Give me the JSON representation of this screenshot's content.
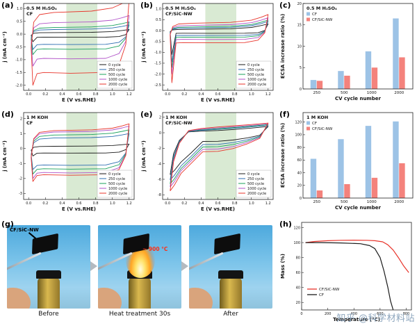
{
  "letters": {
    "a": "(a)",
    "b": "(b)",
    "c": "(c)",
    "d": "(d)",
    "e": "(e)",
    "f": "(f)",
    "g": "(g)",
    "h": "(h)"
  },
  "photos": {
    "captions": [
      "Before",
      "Heat treatment 30s",
      "After"
    ],
    "sample_label": "CF/SiC-NW",
    "flame_temp": "~ 900 °C"
  },
  "watermark": "知乎 @科学材料站",
  "chart_data": [
    {
      "panel": "a",
      "type": "cv",
      "title": "0.5 M H₂SO₄",
      "subtitle": "CF",
      "xlabel": "E (V vs.RHE)",
      "ylabel": "j (mA cm⁻²)",
      "xlim": [
        -0.06,
        1.26
      ],
      "ylim": [
        -2.2,
        1.2
      ],
      "xticks": [
        0.0,
        0.2,
        0.4,
        0.6,
        0.8,
        1.0,
        1.2
      ],
      "xtickfmt": "1f",
      "yticks": [
        1.0,
        0.5,
        0.0,
        -0.5,
        -1.0,
        -1.5,
        -2.0
      ],
      "ytickfmt": "1f",
      "band": [
        0.45,
        0.82
      ],
      "band_color": "#d9ead3",
      "series": [
        {
          "label": "0 cycle",
          "color": "#1a1a1a",
          "top": 0.06,
          "bottom": -0.12,
          "rise": 0.12,
          "dip": -0.3
        },
        {
          "label": "250 cycle",
          "color": "#2b6cb0",
          "top": 0.18,
          "bottom": -0.4,
          "rise": 0.18,
          "dip": -0.6
        },
        {
          "label": "500 cycle",
          "color": "#18a05a",
          "top": 0.26,
          "bottom": -0.58,
          "rise": 0.22,
          "dip": -0.8
        },
        {
          "label": "1000 cycle",
          "color": "#b052c8",
          "top": 0.45,
          "bottom": -0.95,
          "rise": 0.28,
          "dip": -1.25
        },
        {
          "label": "2000 cycle",
          "color": "#e8332a",
          "top": 0.85,
          "bottom": -1.5,
          "rise": 0.5,
          "dip": -2.0
        }
      ]
    },
    {
      "panel": "b",
      "type": "cv",
      "title": "0.5 M H₂SO₄",
      "subtitle": "CF/SiC-NW",
      "xlabel": "E (V vs.RHE)",
      "ylabel": "j (mA cm⁻²)",
      "xlim": [
        -0.06,
        1.26
      ],
      "ylim": [
        -2.75,
        1.25
      ],
      "xticks": [
        0.0,
        0.2,
        0.4,
        0.6,
        0.8,
        1.0,
        1.2
      ],
      "xtickfmt": "1f",
      "yticks": [
        1.0,
        0.5,
        0.0,
        -0.5,
        -1.0,
        -1.5,
        -2.0,
        -2.5
      ],
      "ytickfmt": "1f",
      "band": [
        0.45,
        0.82
      ],
      "band_color": "#d9ead3",
      "series": [
        {
          "label": "0 cycle",
          "color": "#1a1a1a",
          "top": 0.06,
          "bottom": -0.12,
          "rise": 0.25,
          "dip": -1.1
        },
        {
          "label": "250 cycle",
          "color": "#2b6cb0",
          "top": 0.12,
          "bottom": -0.22,
          "rise": 0.3,
          "dip": -1.45
        },
        {
          "label": "500 cycle",
          "color": "#18a05a",
          "top": 0.17,
          "bottom": -0.3,
          "rise": 0.32,
          "dip": -1.7
        },
        {
          "label": "1000 cycle",
          "color": "#b052c8",
          "top": 0.24,
          "bottom": -0.4,
          "rise": 0.35,
          "dip": -2.0
        },
        {
          "label": "2000 cycle",
          "color": "#e8332a",
          "top": 0.34,
          "bottom": -0.55,
          "rise": 0.4,
          "dip": -2.4
        }
      ]
    },
    {
      "panel": "c",
      "type": "bar",
      "title": "0.5 M H₂SO₄",
      "xlabel": "CV cycle number",
      "ylabel": "ECSA increase ratio (%)",
      "xlim": [
        0,
        1
      ],
      "xticks": [],
      "ylim": [
        0,
        20
      ],
      "yticks": [
        0,
        5,
        10,
        15,
        20
      ],
      "ytickfmt": "int",
      "categories": [
        "250",
        "500",
        "1000",
        "2000"
      ],
      "series": [
        {
          "label": "CF",
          "color": "#9DC3E6",
          "values": [
            2.1,
            4.2,
            8.8,
            16.5
          ]
        },
        {
          "label": "CF/SiC-NW",
          "color": "#F4827C",
          "values": [
            1.9,
            3.1,
            5.0,
            7.4
          ]
        }
      ]
    },
    {
      "panel": "d",
      "type": "cv",
      "title": "1 M KOH",
      "subtitle": "CF",
      "xlabel": "E (V vs.RHE)",
      "ylabel": "j (mA cm⁻²)",
      "xlim": [
        -0.06,
        1.26
      ],
      "ylim": [
        -3.4,
        2.4
      ],
      "xticks": [
        0.0,
        0.2,
        0.4,
        0.6,
        0.8,
        1.0,
        1.2
      ],
      "xtickfmt": "1f",
      "yticks": [
        2,
        1,
        0,
        -1,
        -2,
        -3
      ],
      "ytickfmt": "int",
      "band": [
        0.45,
        0.82
      ],
      "band_color": "#d9ead3",
      "series": [
        {
          "label": "0 cycle",
          "color": "#1a1a1a",
          "top": 0.15,
          "bottom": -0.3,
          "rise": 0.15,
          "dip": -0.5
        },
        {
          "label": "250 cycle",
          "color": "#2b6cb0",
          "top": 0.7,
          "bottom": -1.1,
          "rise": 0.3,
          "dip": -1.4
        },
        {
          "label": "500 cycle",
          "color": "#18a05a",
          "top": 0.9,
          "bottom": -1.35,
          "rise": 0.35,
          "dip": -1.7
        },
        {
          "label": "1000 cycle",
          "color": "#b052c8",
          "top": 1.1,
          "bottom": -1.6,
          "rise": 0.4,
          "dip": -2.0
        },
        {
          "label": "2000 cycle",
          "color": "#e8332a",
          "top": 1.2,
          "bottom": -1.75,
          "rise": 0.45,
          "dip": -2.2
        }
      ]
    },
    {
      "panel": "e",
      "type": "cv",
      "title": "1 M KOH",
      "subtitle": "CF/SiC-NW",
      "xlabel": "E (V vs.RHE)",
      "ylabel": "j (mA cm⁻²)",
      "xlim": [
        -0.06,
        1.26
      ],
      "ylim": [
        -8.6,
        2.6
      ],
      "xticks": [
        0.0,
        0.2,
        0.4,
        0.6,
        0.8,
        1.0,
        1.2
      ],
      "xtickfmt": "1f",
      "yticks": [
        2,
        0,
        -2,
        -4,
        -6,
        -8
      ],
      "ytickfmt": "int",
      "band": [
        0.45,
        0.82
      ],
      "band_color": "#d9ead3",
      "series": [
        {
          "label": "0 cycle",
          "color": "#1a1a1a",
          "shape": "leaf",
          "top": 0.3,
          "bottom": -1.1,
          "right": 0.8,
          "dip": -5.4
        },
        {
          "label": "250 cycle",
          "color": "#2b6cb0",
          "shape": "leaf",
          "top": 0.45,
          "bottom": -1.5,
          "right": 0.95,
          "dip": -6.1
        },
        {
          "label": "500 cycle",
          "color": "#18a05a",
          "shape": "leaf",
          "top": 0.55,
          "bottom": -1.8,
          "right": 1.05,
          "dip": -6.6
        },
        {
          "label": "1000 cycle",
          "color": "#b052c8",
          "shape": "leaf",
          "top": 0.65,
          "bottom": -2.1,
          "right": 1.15,
          "dip": -7.0
        },
        {
          "label": "2000 cycle",
          "color": "#e8332a",
          "shape": "leaf",
          "top": 0.78,
          "bottom": -2.4,
          "right": 1.25,
          "dip": -7.5
        }
      ]
    },
    {
      "panel": "f",
      "type": "bar",
      "title": "1 M KOH",
      "xlabel": "CV cycle number",
      "ylabel": "ECSA increase ratio (%)",
      "xlim": [
        0,
        1
      ],
      "xticks": [],
      "ylim": [
        0,
        135
      ],
      "yticks": [
        0,
        20,
        40,
        60,
        80,
        100,
        120
      ],
      "ytickfmt": "int",
      "categories": [
        "250",
        "500",
        "1000",
        "2000"
      ],
      "series": [
        {
          "label": "CF",
          "color": "#9DC3E6",
          "values": [
            62,
            93,
            114,
            121
          ]
        },
        {
          "label": "CF/SiC-NW",
          "color": "#F4827C",
          "values": [
            12,
            22,
            32,
            55
          ]
        }
      ]
    },
    {
      "panel": "h",
      "type": "line",
      "xlabel": "Temperature (°C)",
      "ylabel": "Mass (%)",
      "xlim": [
        0,
        840
      ],
      "xticks": [
        0,
        200,
        400,
        600,
        800
      ],
      "xtickfmt": "int",
      "ylim": [
        10,
        127
      ],
      "yticks": [
        20,
        40,
        60,
        80,
        100,
        120
      ],
      "ytickfmt": "int",
      "series": [
        {
          "label": "CF/SiC-NW",
          "color": "#e8332a",
          "points": [
            [
              30,
              100
            ],
            [
              100,
              101.5
            ],
            [
              200,
              102.5
            ],
            [
              300,
              103
            ],
            [
              400,
              103.2
            ],
            [
              500,
              103
            ],
            [
              560,
              102.5
            ],
            [
              620,
              101
            ],
            [
              660,
              97
            ],
            [
              700,
              90
            ],
            [
              740,
              80
            ],
            [
              780,
              69
            ],
            [
              820,
              60
            ]
          ]
        },
        {
          "label": "CF",
          "color": "#1a1a1a",
          "points": [
            [
              30,
              100
            ],
            [
              150,
              100
            ],
            [
              300,
              99.5
            ],
            [
              450,
              98.5
            ],
            [
              520,
              96
            ],
            [
              560,
              92
            ],
            [
              600,
              80
            ],
            [
              630,
              62
            ],
            [
              660,
              40
            ],
            [
              680,
              22
            ],
            [
              700,
              10
            ],
            [
              715,
              3
            ],
            [
              730,
              1
            ]
          ]
        }
      ]
    }
  ]
}
